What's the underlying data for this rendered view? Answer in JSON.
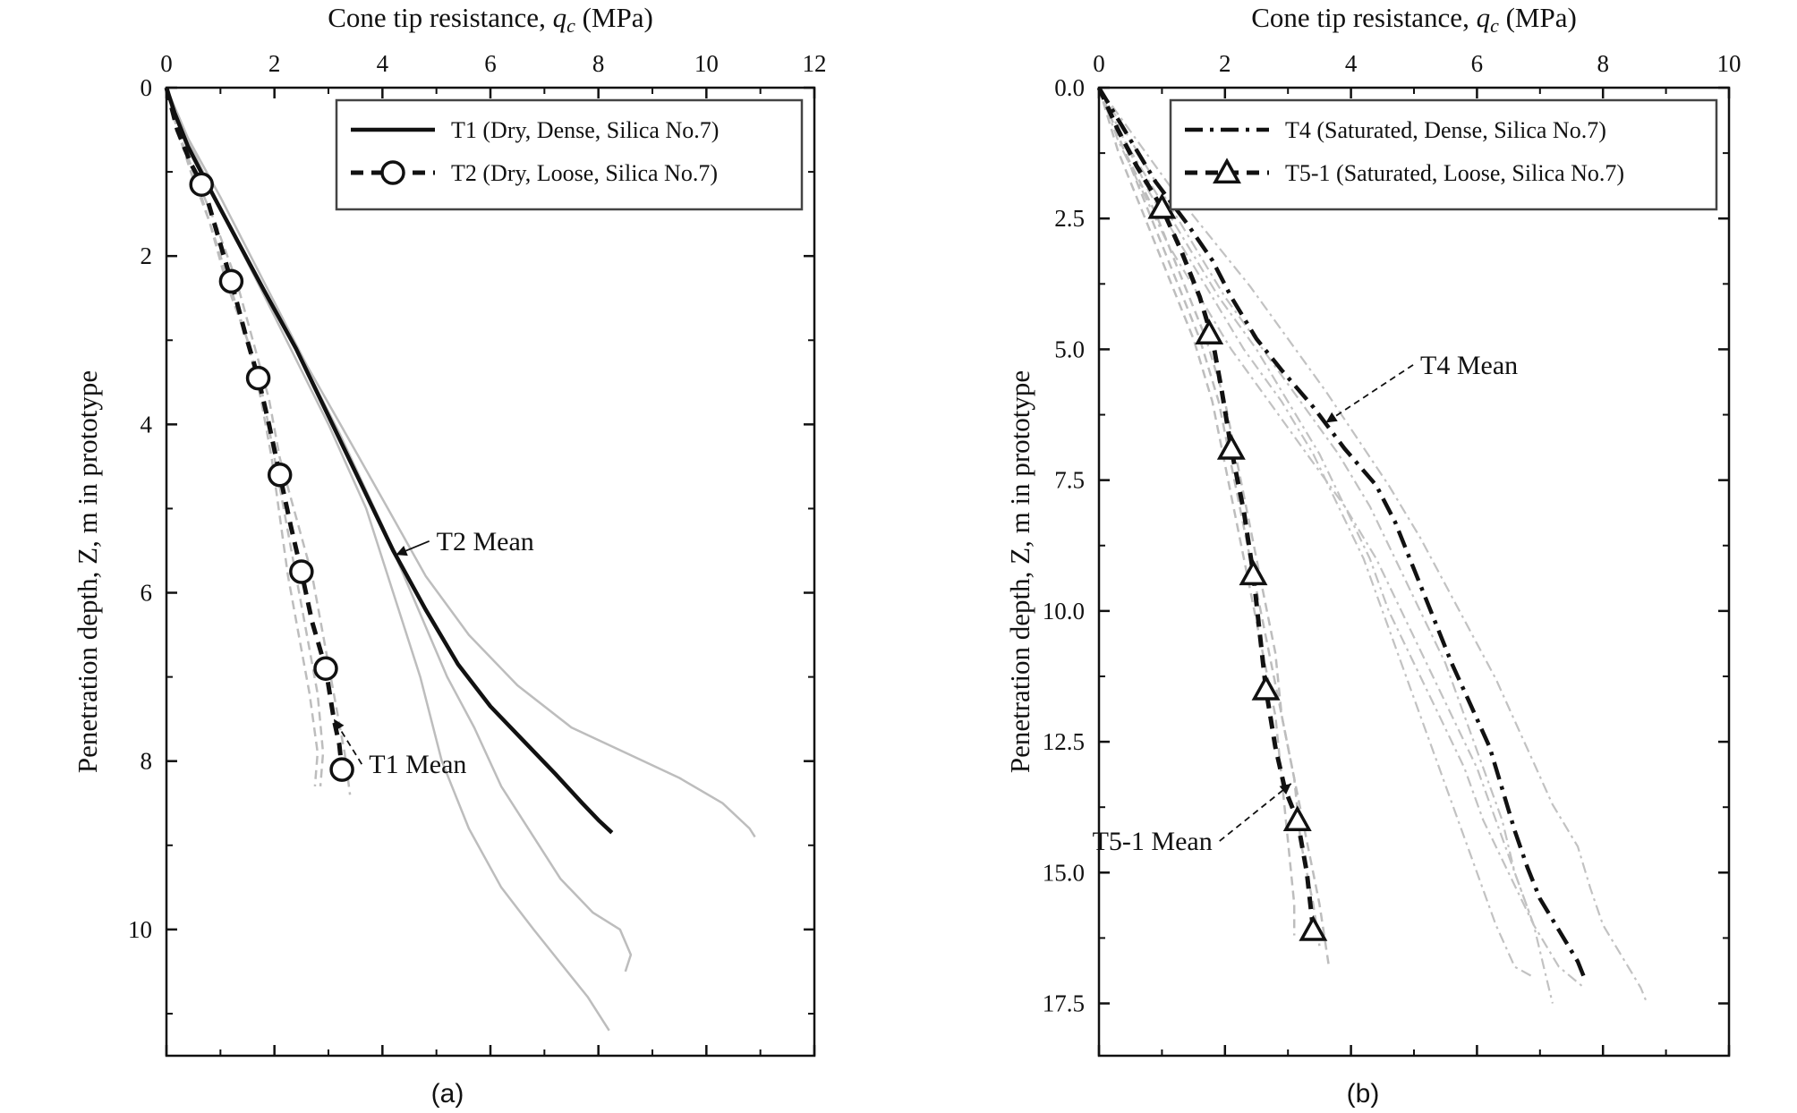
{
  "chart_data": [
    {
      "type": "line",
      "panel_label": "(a)",
      "xlabel_prefix": "Cone tip resistance, ",
      "xlabel_var": "q",
      "xlabel_sub": "c",
      "xlabel_suffix": " (MPa)",
      "ylabel": "Penetration depth, Z, m in prototype",
      "xlim": [
        0,
        12
      ],
      "ylim": [
        11.5,
        0
      ],
      "xticks": [
        "0",
        "2",
        "4",
        "6",
        "8",
        "10",
        "12"
      ],
      "yticks": [
        "0",
        "2",
        "4",
        "6",
        "8",
        "10"
      ],
      "xtick_values": [
        0,
        2,
        4,
        6,
        8,
        10,
        12
      ],
      "ytick_values": [
        0,
        2,
        4,
        6,
        8,
        10
      ],
      "legend_position": "top-right",
      "series": [
        {
          "name": "T1 (Dry, Dense, Silica No.7)",
          "style": "solid",
          "x": [
            0.0,
            0.15,
            0.4,
            0.8,
            1.3,
            1.8,
            2.4,
            3.0,
            3.6,
            4.2,
            4.8,
            5.4,
            6.0,
            6.6,
            7.2,
            7.7,
            8.0,
            8.25
          ],
          "y": [
            0.0,
            0.3,
            0.7,
            1.2,
            1.8,
            2.4,
            3.1,
            3.9,
            4.7,
            5.5,
            6.2,
            6.85,
            7.35,
            7.75,
            8.15,
            8.5,
            8.7,
            8.85
          ]
        },
        {
          "name": "T2 (Dry, Loose, Silica No.7)",
          "style": "dashed",
          "marker": "circle",
          "x": [
            0.0,
            0.2,
            0.45,
            0.7,
            0.95,
            1.2,
            1.45,
            1.7,
            1.9,
            2.1,
            2.3,
            2.5,
            2.7,
            2.95,
            3.1,
            3.2,
            3.25
          ],
          "y": [
            0.0,
            0.5,
            0.9,
            1.2,
            1.75,
            2.3,
            2.9,
            3.45,
            4.0,
            4.6,
            5.2,
            5.75,
            6.35,
            6.9,
            7.5,
            7.8,
            8.1
          ],
          "markers_x": [
            0.65,
            1.2,
            1.7,
            2.1,
            2.5,
            2.95,
            3.25
          ],
          "markers_y": [
            1.15,
            2.3,
            3.45,
            4.6,
            5.75,
            6.9,
            8.1
          ]
        }
      ],
      "individual_runs": [
        {
          "style": "solid-grey",
          "x": [
            0.0,
            0.4,
            1.0,
            1.8,
            2.6,
            3.4,
            4.1,
            4.8,
            5.6,
            6.5,
            7.5,
            8.5,
            9.5,
            10.3,
            10.8,
            10.9
          ],
          "y": [
            0.0,
            0.6,
            1.3,
            2.3,
            3.3,
            4.2,
            5.0,
            5.8,
            6.5,
            7.1,
            7.6,
            7.9,
            8.2,
            8.5,
            8.8,
            8.9
          ]
        },
        {
          "style": "solid-grey",
          "x": [
            0.0,
            0.3,
            0.9,
            1.6,
            2.4,
            3.2,
            4.0,
            4.6,
            5.2,
            5.7,
            6.2,
            6.8,
            7.3,
            7.9,
            8.4,
            8.6,
            8.5
          ],
          "y": [
            0.0,
            0.5,
            1.3,
            2.2,
            3.1,
            4.1,
            5.2,
            6.1,
            7.0,
            7.6,
            8.3,
            8.9,
            9.4,
            9.8,
            10.0,
            10.3,
            10.5
          ]
        },
        {
          "style": "solid-grey",
          "x": [
            0.0,
            0.3,
            0.9,
            1.6,
            2.3,
            3.0,
            3.7,
            4.2,
            4.7,
            5.1,
            5.6,
            6.2,
            6.8,
            7.3,
            7.8,
            8.1,
            8.2
          ],
          "y": [
            0.0,
            0.5,
            1.3,
            2.2,
            3.1,
            4.0,
            5.0,
            6.0,
            7.0,
            8.0,
            8.8,
            9.5,
            10.0,
            10.4,
            10.8,
            11.1,
            11.2
          ]
        },
        {
          "style": "dashed-grey",
          "x": [
            0.0,
            0.2,
            0.5,
            0.9,
            1.3,
            1.6,
            1.9,
            2.1,
            2.4,
            2.7,
            2.9,
            3.1,
            3.3,
            3.4
          ],
          "y": [
            0.0,
            0.5,
            1.0,
            1.6,
            2.3,
            3.0,
            3.7,
            4.4,
            5.1,
            5.8,
            6.5,
            7.2,
            7.9,
            8.4
          ]
        },
        {
          "style": "dashed-grey",
          "x": [
            0.0,
            0.2,
            0.5,
            0.8,
            1.1,
            1.5,
            1.8,
            2.0,
            2.2,
            2.4,
            2.6,
            2.8,
            2.9,
            2.85
          ],
          "y": [
            0.0,
            0.5,
            1.0,
            1.6,
            2.3,
            3.0,
            3.7,
            4.4,
            5.1,
            5.8,
            6.5,
            7.2,
            7.9,
            8.3
          ]
        },
        {
          "style": "dashed-grey",
          "x": [
            0.0,
            0.2,
            0.45,
            0.8,
            1.15,
            1.5,
            1.75,
            1.95,
            2.1,
            2.25,
            2.45,
            2.65,
            2.8,
            2.75
          ],
          "y": [
            0.0,
            0.5,
            1.0,
            1.6,
            2.3,
            3.0,
            3.7,
            4.4,
            5.1,
            5.8,
            6.5,
            7.2,
            7.9,
            8.3
          ]
        }
      ],
      "annotations": [
        {
          "text": "T2 Mean",
          "x": 5.0,
          "y": 5.45,
          "arrow_to_x": 4.25,
          "arrow_to_y": 5.55
        },
        {
          "text": "T1 Mean",
          "x": 3.75,
          "y": 8.1,
          "arrow_to_x": 3.1,
          "arrow_to_y": 7.5
        }
      ]
    },
    {
      "type": "line",
      "panel_label": "(b)",
      "xlabel_prefix": "Cone tip resistance, ",
      "xlabel_var": "q",
      "xlabel_sub": "c",
      "xlabel_suffix": " (MPa)",
      "ylabel": "Penetration depth, Z, m in prototype",
      "xlim": [
        0,
        10
      ],
      "ylim": [
        18.5,
        0
      ],
      "xticks": [
        "0",
        "2",
        "4",
        "6",
        "8",
        "10"
      ],
      "yticks": [
        "0.0",
        "2.5",
        "5.0",
        "7.5",
        "10.0",
        "12.5",
        "15.0",
        "17.5"
      ],
      "xtick_values": [
        0,
        2,
        4,
        6,
        8,
        10
      ],
      "ytick_values": [
        0,
        2.5,
        5.0,
        7.5,
        10.0,
        12.5,
        15.0,
        17.5
      ],
      "legend_position": "top-right",
      "series": [
        {
          "name": "T4 (Saturated, Dense, Silica No.7)",
          "style": "dashdot",
          "x": [
            0.0,
            0.4,
            0.9,
            1.4,
            1.8,
            2.1,
            2.5,
            2.9,
            3.4,
            3.9,
            4.4,
            4.7,
            5.0,
            5.3,
            5.6,
            5.9,
            6.2,
            6.4,
            6.6,
            6.8,
            7.0,
            7.3,
            7.6,
            7.7
          ],
          "y": [
            0.0,
            0.8,
            1.8,
            2.6,
            3.3,
            4.0,
            4.8,
            5.4,
            6.1,
            6.9,
            7.6,
            8.3,
            9.2,
            10.1,
            11.0,
            11.8,
            12.6,
            13.4,
            14.2,
            14.9,
            15.5,
            16.1,
            16.7,
            17.0
          ]
        },
        {
          "name": "T5-1 (Saturated, Loose, Silica No.7)",
          "style": "dashed",
          "marker": "triangle",
          "x": [
            0.0,
            0.3,
            0.6,
            1.0,
            1.3,
            1.6,
            1.8,
            1.95,
            2.1,
            2.3,
            2.45,
            2.55,
            2.65,
            2.8,
            2.95,
            3.15,
            3.3,
            3.4
          ],
          "y": [
            0.0,
            0.8,
            1.5,
            2.3,
            3.1,
            4.0,
            4.8,
            5.8,
            6.9,
            8.1,
            9.3,
            10.4,
            11.5,
            12.6,
            13.4,
            14.0,
            15.0,
            16.1
          ],
          "markers_x": [
            1.0,
            1.75,
            2.1,
            2.45,
            2.65,
            3.15,
            3.4
          ],
          "markers_y": [
            2.3,
            4.7,
            6.9,
            9.3,
            11.5,
            14.0,
            16.1
          ]
        }
      ],
      "individual_runs": [
        {
          "style": "dashdot-grey",
          "x": [
            0.0,
            0.6,
            1.2,
            1.8,
            2.4,
            3.0,
            3.6,
            4.1,
            4.6,
            5.1,
            5.5,
            5.9,
            6.3,
            6.6,
            6.9,
            7.2,
            7.6,
            7.8,
            8.0,
            8.3,
            8.6,
            8.7
          ],
          "y": [
            0.0,
            1.0,
            2.0,
            2.9,
            3.8,
            4.8,
            5.8,
            6.7,
            7.6,
            8.6,
            9.5,
            10.4,
            11.3,
            12.1,
            12.9,
            13.7,
            14.5,
            15.3,
            16.0,
            16.6,
            17.2,
            17.5
          ]
        },
        {
          "style": "dashdot-grey",
          "x": [
            0.0,
            0.5,
            1.0,
            1.5,
            2.0,
            2.6,
            3.2,
            3.8,
            4.3,
            4.7,
            5.1,
            5.5,
            5.8,
            6.1,
            6.4,
            6.6,
            6.9,
            7.1,
            7.2
          ],
          "y": [
            0.0,
            1.0,
            2.0,
            3.0,
            4.0,
            5.0,
            6.0,
            7.0,
            8.0,
            9.0,
            10.0,
            11.0,
            12.0,
            13.0,
            14.0,
            15.0,
            16.0,
            17.0,
            17.5
          ]
        },
        {
          "style": "dashdot-grey",
          "x": [
            0.0,
            0.4,
            0.9,
            1.4,
            1.9,
            2.5,
            3.0,
            3.5,
            3.9,
            4.3,
            4.6,
            5.0,
            5.4,
            5.8,
            6.1,
            6.5,
            6.9,
            7.3,
            7.7
          ],
          "y": [
            0.0,
            1.0,
            2.0,
            3.0,
            4.0,
            5.0,
            6.0,
            7.0,
            8.0,
            9.0,
            10.0,
            11.0,
            12.0,
            13.0,
            14.0,
            15.0,
            16.0,
            16.8,
            17.2
          ]
        },
        {
          "style": "dashdot-grey",
          "x": [
            0.0,
            0.4,
            0.8,
            1.3,
            1.8,
            2.3,
            2.9,
            3.4,
            3.8,
            4.2,
            4.5,
            4.8,
            5.1,
            5.4,
            5.7,
            6.0,
            6.3,
            6.6,
            6.9
          ],
          "y": [
            0.0,
            1.0,
            2.0,
            3.0,
            4.0,
            5.0,
            6.0,
            7.0,
            8.0,
            9.0,
            10.0,
            11.0,
            12.0,
            13.0,
            14.0,
            15.0,
            16.0,
            16.8,
            17.0
          ]
        },
        {
          "style": "dashdot-grey",
          "x": [
            0.0,
            0.3,
            0.7,
            1.1,
            1.6,
            2.1,
            2.7,
            3.3,
            3.9,
            4.4,
            4.8,
            5.2,
            5.6,
            6.0,
            6.3,
            6.6,
            6.9
          ],
          "y": [
            0.0,
            1.0,
            2.0,
            3.0,
            4.0,
            5.0,
            6.0,
            7.0,
            8.0,
            9.0,
            10.0,
            11.0,
            12.0,
            13.0,
            14.0,
            15.0,
            16.0
          ]
        },
        {
          "style": "dashed-grey",
          "x": [
            0.0,
            0.4,
            0.9,
            1.3,
            1.7,
            2.0,
            2.2,
            2.4,
            2.6,
            2.8,
            2.9,
            3.1,
            3.3,
            3.5,
            3.65
          ],
          "y": [
            0.0,
            1.2,
            2.4,
            3.6,
            4.8,
            6.0,
            7.2,
            8.4,
            9.6,
            10.8,
            12.0,
            13.2,
            14.4,
            15.6,
            16.8
          ]
        },
        {
          "style": "dashed-grey",
          "x": [
            0.0,
            0.3,
            0.7,
            1.1,
            1.5,
            1.8,
            2.0,
            2.2,
            2.4,
            2.6,
            2.8,
            2.9,
            3.0,
            3.1,
            3.1
          ],
          "y": [
            0.0,
            1.2,
            2.4,
            3.6,
            4.8,
            6.0,
            7.2,
            8.4,
            9.6,
            10.8,
            12.0,
            13.2,
            14.4,
            15.6,
            16.2
          ]
        },
        {
          "style": "dashed-grey",
          "x": [
            0.0,
            0.4,
            0.8,
            1.2,
            1.6,
            1.9,
            2.1,
            2.3,
            2.5,
            2.7,
            2.9,
            3.1,
            3.2,
            3.4,
            3.5
          ],
          "y": [
            0.0,
            1.2,
            2.4,
            3.6,
            4.8,
            6.0,
            7.2,
            8.4,
            9.6,
            10.8,
            12.0,
            13.2,
            14.4,
            15.6,
            16.4
          ]
        }
      ],
      "annotations": [
        {
          "text": "T4 Mean",
          "x": 5.1,
          "y": 5.4,
          "arrow_to_x": 3.6,
          "arrow_to_y": 6.4
        },
        {
          "text": "T5-1 Mean",
          "x": 1.8,
          "y": 14.5,
          "arrow_to_x": 3.05,
          "arrow_to_y": 13.3
        }
      ]
    }
  ]
}
